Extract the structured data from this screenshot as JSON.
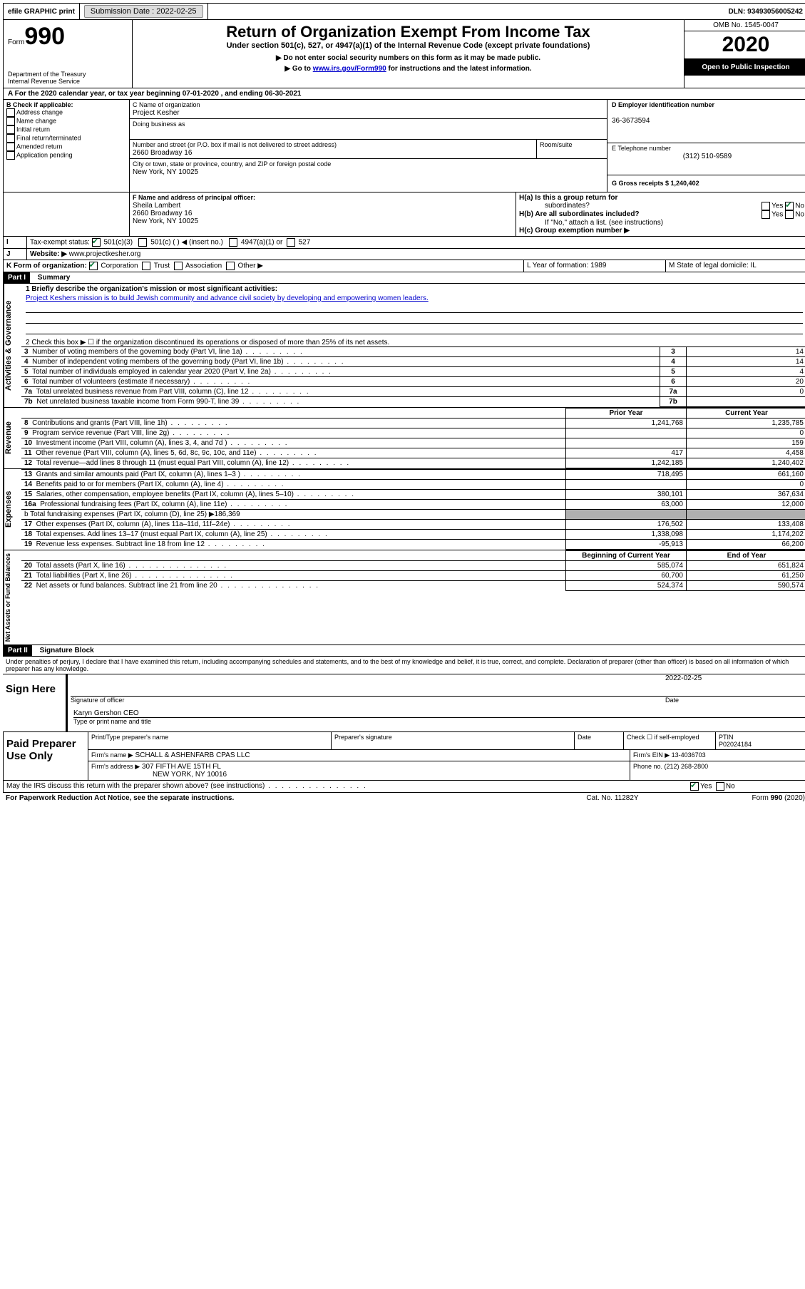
{
  "topbar": {
    "efile_label": "efile GRAPHIC print",
    "submission_label": "Submission Date : 2022-02-25",
    "dln_label": "DLN: 93493056005242"
  },
  "header": {
    "form_prefix": "Form",
    "form_number": "990",
    "dept": "Department of the Treasury",
    "irs": "Internal Revenue Service",
    "title": "Return of Organization Exempt From Income Tax",
    "subtitle": "Under section 501(c), 527, or 4947(a)(1) of the Internal Revenue Code (except private foundations)",
    "note1": "▶ Do not enter social security numbers on this form as it may be made public.",
    "note2_pre": "▶ Go to ",
    "note2_link": "www.irs.gov/Form990",
    "note2_post": " for instructions and the latest information.",
    "omb": "OMB No. 1545-0047",
    "year": "2020",
    "open": "Open to Public Inspection"
  },
  "period": {
    "text": "For the 2020 calendar year, or tax year beginning 07-01-2020    , and ending 06-30-2021"
  },
  "boxB": {
    "label": "B Check if applicable:",
    "items": [
      "Address change",
      "Name change",
      "Initial return",
      "Final return/terminated",
      "Amended return",
      "Application pending"
    ]
  },
  "boxC": {
    "name_label": "C Name of organization",
    "name": "Project Kesher",
    "dba_label": "Doing business as",
    "addr_label": "Number and street (or P.O. box if mail is not delivered to street address)",
    "room_label": "Room/suite",
    "addr": "2660 Broadway 16",
    "city_label": "City or town, state or province, country, and ZIP or foreign postal code",
    "city": "New York, NY  10025"
  },
  "boxD": {
    "label": "D Employer identification number",
    "ein": "36-3673594"
  },
  "boxE": {
    "label": "E Telephone number",
    "phone": "(312) 510-9589"
  },
  "boxG": {
    "label": "G Gross receipts $ 1,240,402"
  },
  "boxF": {
    "label": "F Name and address of principal officer:",
    "name": "Sheila Lambert",
    "addr1": "2660 Broadway 16",
    "addr2": "New York, NY  10025"
  },
  "boxH": {
    "ha_label": "H(a)  Is this a group return for",
    "ha_sub": "subordinates?",
    "hb_label": "H(b)  Are all subordinates included?",
    "hb_note": "If \"No,\" attach a list. (see instructions)",
    "hc_label": "H(c)  Group exemption number ▶",
    "yes": "Yes",
    "no": "No"
  },
  "boxI": {
    "label": "Tax-exempt status:",
    "c3": "501(c)(3)",
    "c": "501(c) (  ) ◀ (insert no.)",
    "a1": "4947(a)(1) or",
    "s527": "527"
  },
  "boxJ": {
    "label": "Website: ▶",
    "url": "www.projectkesher.org"
  },
  "boxK": {
    "label": "K Form of organization:",
    "corp": "Corporation",
    "trust": "Trust",
    "assoc": "Association",
    "other": "Other ▶"
  },
  "boxL": {
    "label": "L Year of formation: 1989"
  },
  "boxM": {
    "label": "M State of legal domicile: IL"
  },
  "partI": {
    "header": "Part I",
    "title": "Summary",
    "side_gov": "Activities & Governance",
    "side_rev": "Revenue",
    "side_exp": "Expenses",
    "side_net": "Net Assets or Fund Balances",
    "l1_label": "1  Briefly describe the organization's mission or most significant activities:",
    "l1_text": "Project Keshers mission is to build Jewish community and advance civil society by developing and empowering women leaders.",
    "l2": "2    Check this box ▶ ☐  if the organization discontinued its operations or disposed of more than 25% of its net assets.",
    "rows_gov": [
      {
        "n": "3",
        "t": "Number of voting members of the governing body (Part VI, line 1a)",
        "v": "14",
        "dot": true
      },
      {
        "n": "4",
        "t": "Number of independent voting members of the governing body (Part VI, line 1b)",
        "v": "14",
        "dot": true
      },
      {
        "n": "5",
        "t": "Total number of individuals employed in calendar year 2020 (Part V, line 2a)",
        "v": "4",
        "dot": true
      },
      {
        "n": "6",
        "t": "Total number of volunteers (estimate if necessary)",
        "v": "20",
        "dot": true
      },
      {
        "n": "7a",
        "t": "Total unrelated business revenue from Part VIII, column (C), line 12",
        "v": "0",
        "dot": true
      },
      {
        "n": "7b",
        "t": "Net unrelated business taxable income from Form 990-T, line 39",
        "v": "",
        "dot": true
      }
    ],
    "hdr_prior": "Prior Year",
    "hdr_curr": "Current Year",
    "rows_rev": [
      {
        "n": "8",
        "t": "Contributions and grants (Part VIII, line 1h)",
        "p": "1,241,768",
        "c": "1,235,785"
      },
      {
        "n": "9",
        "t": "Program service revenue (Part VIII, line 2g)",
        "p": "",
        "c": "0"
      },
      {
        "n": "10",
        "t": "Investment income (Part VIII, column (A), lines 3, 4, and 7d )",
        "p": "",
        "c": "159"
      },
      {
        "n": "11",
        "t": "Other revenue (Part VIII, column (A), lines 5, 6d, 8c, 9c, 10c, and 11e)",
        "p": "417",
        "c": "4,458"
      },
      {
        "n": "12",
        "t": "Total revenue—add lines 8 through 11 (must equal Part VIII, column (A), line 12)",
        "p": "1,242,185",
        "c": "1,240,402"
      }
    ],
    "rows_exp": [
      {
        "n": "13",
        "t": "Grants and similar amounts paid (Part IX, column (A), lines 1–3 )",
        "p": "718,495",
        "c": "661,160"
      },
      {
        "n": "14",
        "t": "Benefits paid to or for members (Part IX, column (A), line 4)",
        "p": "",
        "c": "0"
      },
      {
        "n": "15",
        "t": "Salaries, other compensation, employee benefits (Part IX, column (A), lines 5–10)",
        "p": "380,101",
        "c": "367,634"
      },
      {
        "n": "16a",
        "t": "Professional fundraising fees (Part IX, column (A), line 11e)",
        "p": "63,000",
        "c": "12,000"
      }
    ],
    "l16b": "b   Total fundraising expenses (Part IX, column (D), line 25) ▶186,369",
    "rows_exp2": [
      {
        "n": "17",
        "t": "Other expenses (Part IX, column (A), lines 11a–11d, 11f–24e)",
        "p": "176,502",
        "c": "133,408"
      },
      {
        "n": "18",
        "t": "Total expenses. Add lines 13–17 (must equal Part IX, column (A), line 25)",
        "p": "1,338,098",
        "c": "1,174,202"
      },
      {
        "n": "19",
        "t": "Revenue less expenses. Subtract line 18 from line 12",
        "p": "-95,913",
        "c": "66,200"
      }
    ],
    "hdr_beg": "Beginning of Current Year",
    "hdr_end": "End of Year",
    "rows_net": [
      {
        "n": "20",
        "t": "Total assets (Part X, line 16)",
        "p": "585,074",
        "c": "651,824"
      },
      {
        "n": "21",
        "t": "Total liabilities (Part X, line 26)",
        "p": "60,700",
        "c": "61,250"
      },
      {
        "n": "22",
        "t": "Net assets or fund balances. Subtract line 21 from line 20",
        "p": "524,374",
        "c": "590,574"
      }
    ]
  },
  "partII": {
    "header": "Part II",
    "title": "Signature Block",
    "decl": "Under penalties of perjury, I declare that I have examined this return, including accompanying schedules and statements, and to the best of my knowledge and belief, it is true, correct, and complete. Declaration of preparer (other than officer) is based on all information of which preparer has any knowledge."
  },
  "sign": {
    "here": "Sign Here",
    "sig_officer": "Signature of officer",
    "date": "Date",
    "date_val": "2022-02-25",
    "name": "Karyn Gershon CEO",
    "type_label": "Type or print name and title"
  },
  "paid": {
    "label": "Paid Preparer Use Only",
    "print_label": "Print/Type preparer's name",
    "sig_label": "Preparer's signature",
    "date_label": "Date",
    "check_label": "Check ☐ if self-employed",
    "ptin_label": "PTIN",
    "ptin": "P02024184",
    "firm_name_label": "Firm's name    ▶",
    "firm_name": "SCHALL & ASHENFARB CPAS LLC",
    "firm_ein_label": "Firm's EIN ▶ 13-4036703",
    "firm_addr_label": "Firm's address ▶",
    "firm_addr1": "307 FIFTH AVE 15TH FL",
    "firm_addr2": "NEW YORK, NY  10016",
    "phone_label": "Phone no. (212) 268-2800"
  },
  "footer": {
    "discuss": "May the IRS discuss this return with the preparer shown above? (see instructions)",
    "yes": "Yes",
    "no": "No",
    "pra": "For Paperwork Reduction Act Notice, see the separate instructions.",
    "cat": "Cat. No. 11282Y",
    "form": "Form 990 (2020)"
  }
}
